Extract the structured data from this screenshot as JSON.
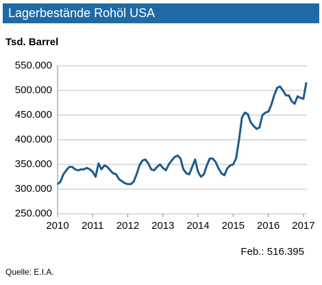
{
  "chart_data": {
    "type": "line",
    "title": "Lagerbestände Rohöl USA",
    "ylabel": "Tsd. Barrel",
    "annotation": "Feb.: 516.395",
    "source": "Quelle:  E.I.A.",
    "x": [
      2010.0,
      2010.083,
      2010.167,
      2010.25,
      2010.333,
      2010.417,
      2010.5,
      2010.583,
      2010.667,
      2010.75,
      2010.833,
      2010.917,
      2011.0,
      2011.083,
      2011.167,
      2011.25,
      2011.333,
      2011.417,
      2011.5,
      2011.583,
      2011.667,
      2011.75,
      2011.833,
      2011.917,
      2012.0,
      2012.083,
      2012.167,
      2012.25,
      2012.333,
      2012.417,
      2012.5,
      2012.583,
      2012.667,
      2012.75,
      2012.833,
      2012.917,
      2013.0,
      2013.083,
      2013.167,
      2013.25,
      2013.333,
      2013.417,
      2013.5,
      2013.583,
      2013.667,
      2013.75,
      2013.833,
      2013.917,
      2014.0,
      2014.083,
      2014.167,
      2014.25,
      2014.333,
      2014.417,
      2014.5,
      2014.583,
      2014.667,
      2014.75,
      2014.833,
      2014.917,
      2015.0,
      2015.083,
      2015.167,
      2015.25,
      2015.333,
      2015.417,
      2015.5,
      2015.583,
      2015.667,
      2015.75,
      2015.833,
      2015.917,
      2016.0,
      2016.083,
      2016.167,
      2016.25,
      2016.333,
      2016.417,
      2016.5,
      2016.583,
      2016.667,
      2016.75,
      2016.833,
      2016.917,
      2017.0,
      2017.083
    ],
    "series": [
      {
        "name": "Lagerbestände",
        "color": "#1a5a8f",
        "values": [
          310000,
          315000,
          330000,
          338000,
          345000,
          345000,
          340000,
          338000,
          340000,
          340000,
          343000,
          340000,
          335000,
          325000,
          352000,
          340000,
          348000,
          345000,
          338000,
          332000,
          330000,
          320000,
          316000,
          312000,
          310000,
          310000,
          315000,
          330000,
          348000,
          358000,
          360000,
          352000,
          340000,
          338000,
          345000,
          350000,
          343000,
          338000,
          350000,
          358000,
          365000,
          368000,
          362000,
          340000,
          332000,
          330000,
          345000,
          360000,
          335000,
          325000,
          330000,
          348000,
          362000,
          362000,
          355000,
          342000,
          332000,
          328000,
          342000,
          348000,
          350000,
          362000,
          400000,
          445000,
          455000,
          452000,
          435000,
          428000,
          422000,
          425000,
          450000,
          455000,
          457000,
          470000,
          490000,
          505000,
          508000,
          500000,
          490000,
          490000,
          478000,
          473000,
          488000,
          485000,
          483000,
          516395
        ]
      }
    ],
    "xlim": [
      2010,
      2017.1
    ],
    "xticks": [
      2010,
      2011,
      2012,
      2013,
      2014,
      2015,
      2016,
      2017
    ],
    "ylim": [
      250000,
      550000
    ],
    "yticks": [
      {
        "value": 250000,
        "label": "250.000"
      },
      {
        "value": 300000,
        "label": "300.000"
      },
      {
        "value": 350000,
        "label": "350.000"
      },
      {
        "value": 400000,
        "label": "400.000"
      },
      {
        "value": 450000,
        "label": "450.000"
      },
      {
        "value": 500000,
        "label": "500.000"
      },
      {
        "value": 550000,
        "label": "550.000"
      }
    ],
    "grid": true
  }
}
